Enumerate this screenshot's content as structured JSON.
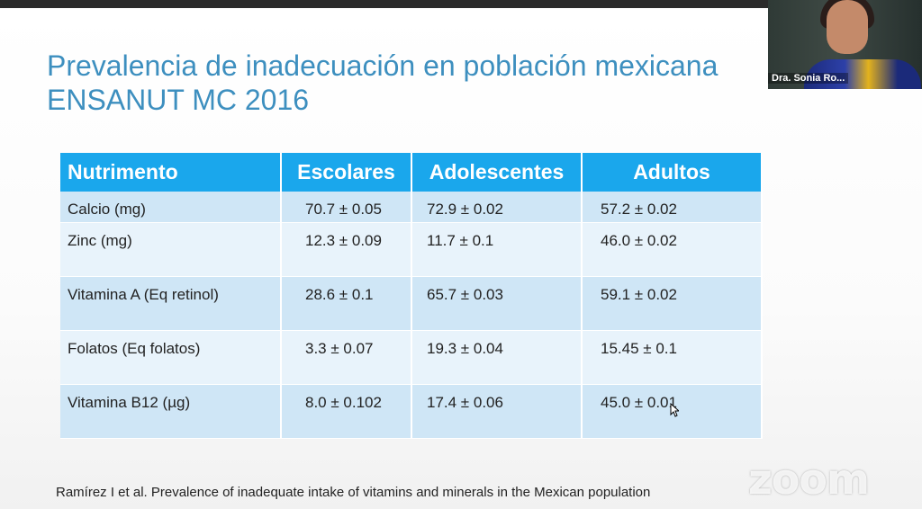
{
  "slide": {
    "title_line1": "Prevalencia de inadecuación en población mexicana",
    "title_line2": "ENSANUT MC 2016",
    "table": {
      "headers": [
        "Nutrimento",
        "Escolares",
        "Adolescentes",
        "Adultos"
      ],
      "rows": [
        [
          "Calcio (mg)",
          "70.7 ± 0.05",
          "72.9 ± 0.02",
          "57.2 ± 0.02"
        ],
        [
          "Zinc (mg)",
          "12.3 ± 0.09",
          "11.7 ± 0.1",
          "46.0 ± 0.02"
        ],
        [
          "Vitamina A (Eq retinol)",
          "28.6 ± 0.1",
          "65.7 ± 0.03",
          "59.1 ± 0.02"
        ],
        [
          "Folatos (Eq folatos)",
          "3.3 ± 0.07",
          "19.3 ± 0.04",
          "15.45 ± 0.1"
        ],
        [
          "Vitamina B12 (µg)",
          "8.0 ± 0.102",
          "17.4 ± 0.06",
          "45.0 ± 0.01"
        ]
      ]
    },
    "footer": "Ramírez I et al.  Prevalence of inadequate intake of vitamins and minerals in the Mexican population"
  },
  "video": {
    "participant_name": "Dra. Sonia Ro..."
  },
  "watermark": "zoom",
  "colors": {
    "title": "#3d8fbf",
    "header_bg": "#1aa7ec",
    "row_dark": "#cfe6f6",
    "row_light": "#e8f3fb"
  }
}
